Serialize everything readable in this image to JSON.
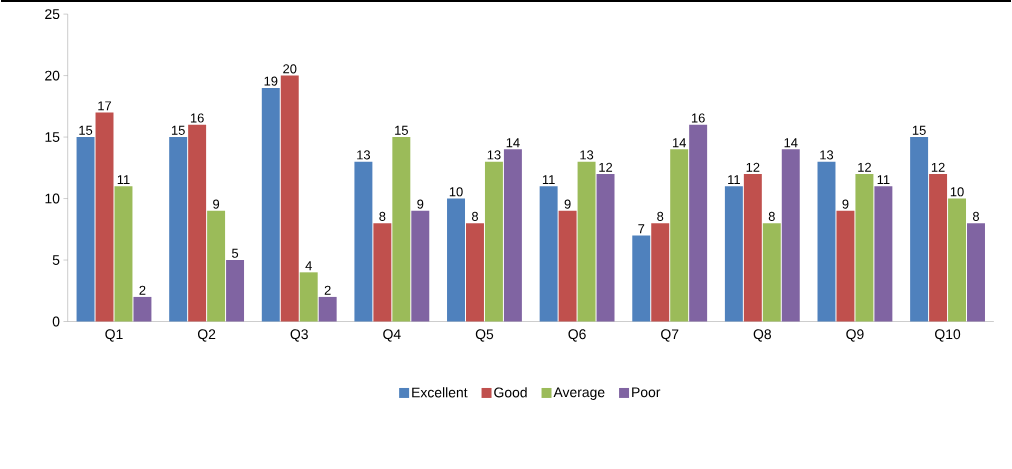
{
  "chart_data": {
    "type": "bar",
    "categories": [
      "Q1",
      "Q2",
      "Q3",
      "Q4",
      "Q5",
      "Q6",
      "Q7",
      "Q8",
      "Q9",
      "Q10"
    ],
    "series": [
      {
        "name": "Excellent",
        "color": "#4f81bd",
        "values": [
          15,
          15,
          19,
          13,
          10,
          11,
          7,
          11,
          13,
          15
        ]
      },
      {
        "name": "Good",
        "color": "#c0504d",
        "values": [
          17,
          16,
          20,
          8,
          8,
          9,
          8,
          12,
          9,
          12
        ]
      },
      {
        "name": "Average",
        "color": "#9bbb59",
        "values": [
          11,
          9,
          4,
          15,
          13,
          13,
          14,
          8,
          12,
          10
        ]
      },
      {
        "name": "Poor",
        "color": "#8064a2",
        "values": [
          2,
          5,
          2,
          9,
          14,
          12,
          16,
          14,
          11,
          8
        ]
      }
    ],
    "ylim": [
      0,
      25
    ],
    "yticks": [
      0,
      5,
      10,
      15,
      20,
      25
    ],
    "data_labels": true,
    "legend": "bottom",
    "grid": false
  }
}
